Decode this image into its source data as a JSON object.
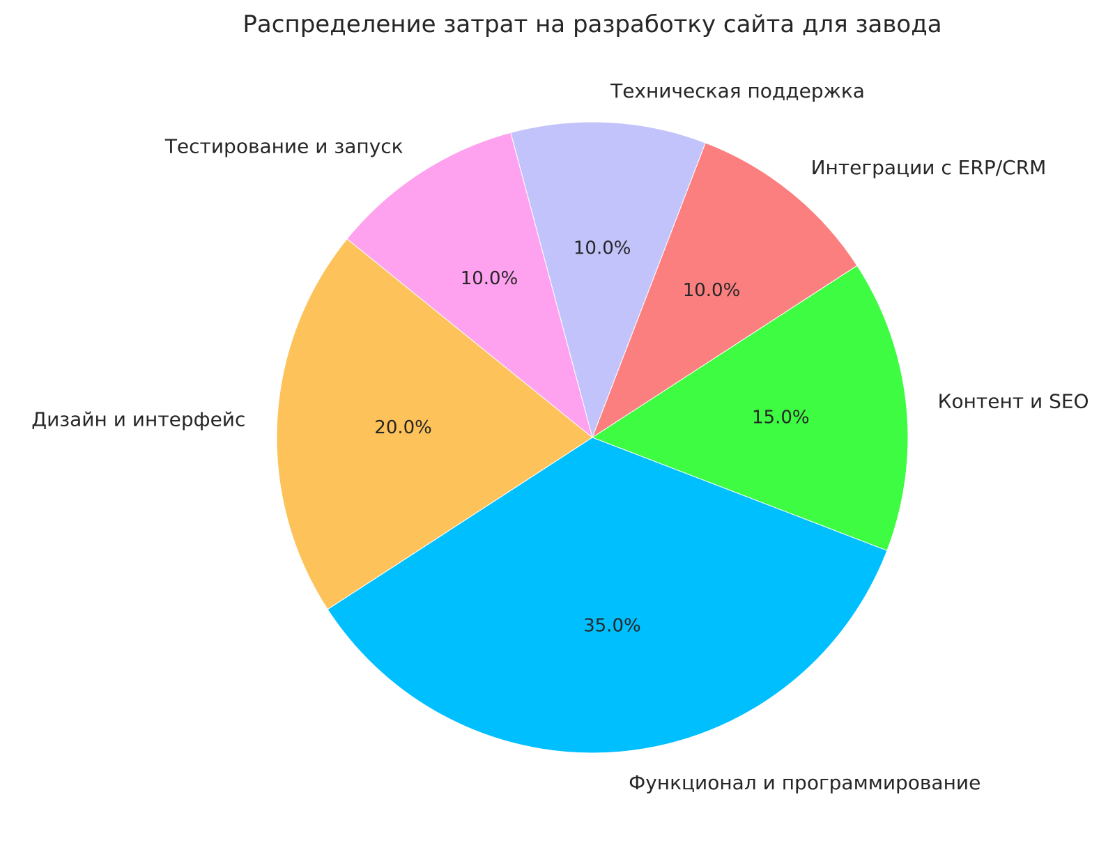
{
  "page": {
    "background_color": "#ffffff",
    "text_color": "#262626"
  },
  "chart_data": {
    "type": "pie",
    "title": "Распределение затрат на разработку сайта для завода",
    "labels": [
      "Техническая поддержка",
      "Интеграции с ERP/CRM",
      "Контент и SEO",
      "Функционал и программирование",
      "Дизайн и интерфейс",
      "Тестирование и запуск"
    ],
    "values": [
      10,
      10,
      15,
      35,
      20,
      10
    ],
    "percent_labels": [
      "10.0%",
      "10.0%",
      "15.0%",
      "35.0%",
      "20.0%",
      "10.0%"
    ],
    "colors": [
      "#C3C3FB",
      "#FB7F7F",
      "#3EFC42",
      "#00BFFF",
      "#FDC25A",
      "#FEA1EF"
    ],
    "start_angle_css_deg": -15,
    "direction": "clockwise",
    "legend": "none",
    "label_distance": 1.1,
    "pct_distance": 0.6
  }
}
